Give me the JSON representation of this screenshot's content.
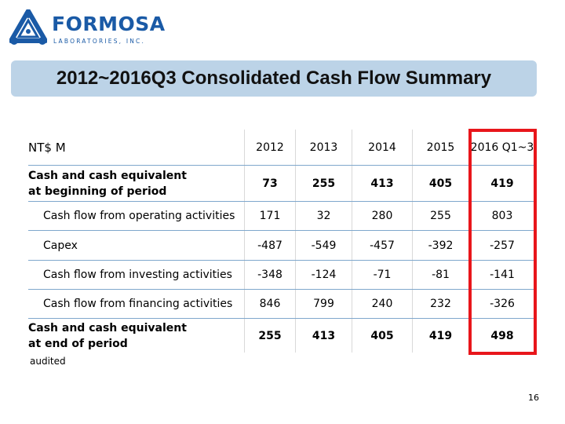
{
  "logo": {
    "icon_name": "formosa-triangle-logo",
    "wordmark": "FORMOSA",
    "subtitle": "LABORATORIES, INC.",
    "color": "#1a5aa6"
  },
  "title": "2012~2016Q3 Consolidated Cash Flow Summary",
  "table": {
    "header": {
      "label": "NT$ M",
      "years": [
        "2012",
        "2013",
        "2014",
        "2015",
        "2016 Q1~3"
      ]
    },
    "rows": [
      {
        "label_line1": "Cash and cash equivalent",
        "label_line2": "at beginning of period",
        "values": [
          "73",
          "255",
          "413",
          "405",
          "419"
        ]
      },
      {
        "label": "Cash flow from operating activities",
        "values": [
          "171",
          "32",
          "280",
          "255",
          "803"
        ]
      },
      {
        "label": "Capex",
        "values": [
          "-487",
          "-549",
          "-457",
          "-392",
          "-257"
        ]
      },
      {
        "label": "Cash flow from investing activities",
        "values": [
          "-348",
          "-124",
          "-71",
          "-81",
          "-141"
        ]
      },
      {
        "label": "Cash flow from financing activities",
        "values": [
          "846",
          "799",
          "240",
          "232",
          "-326"
        ]
      },
      {
        "label_line1": "Cash and cash equivalent",
        "label_line2": "at end of period",
        "values": [
          "255",
          "413",
          "405",
          "419",
          "498"
        ]
      }
    ],
    "highlight_color": "#e8161b"
  },
  "note": "audited",
  "page_number": "16"
}
